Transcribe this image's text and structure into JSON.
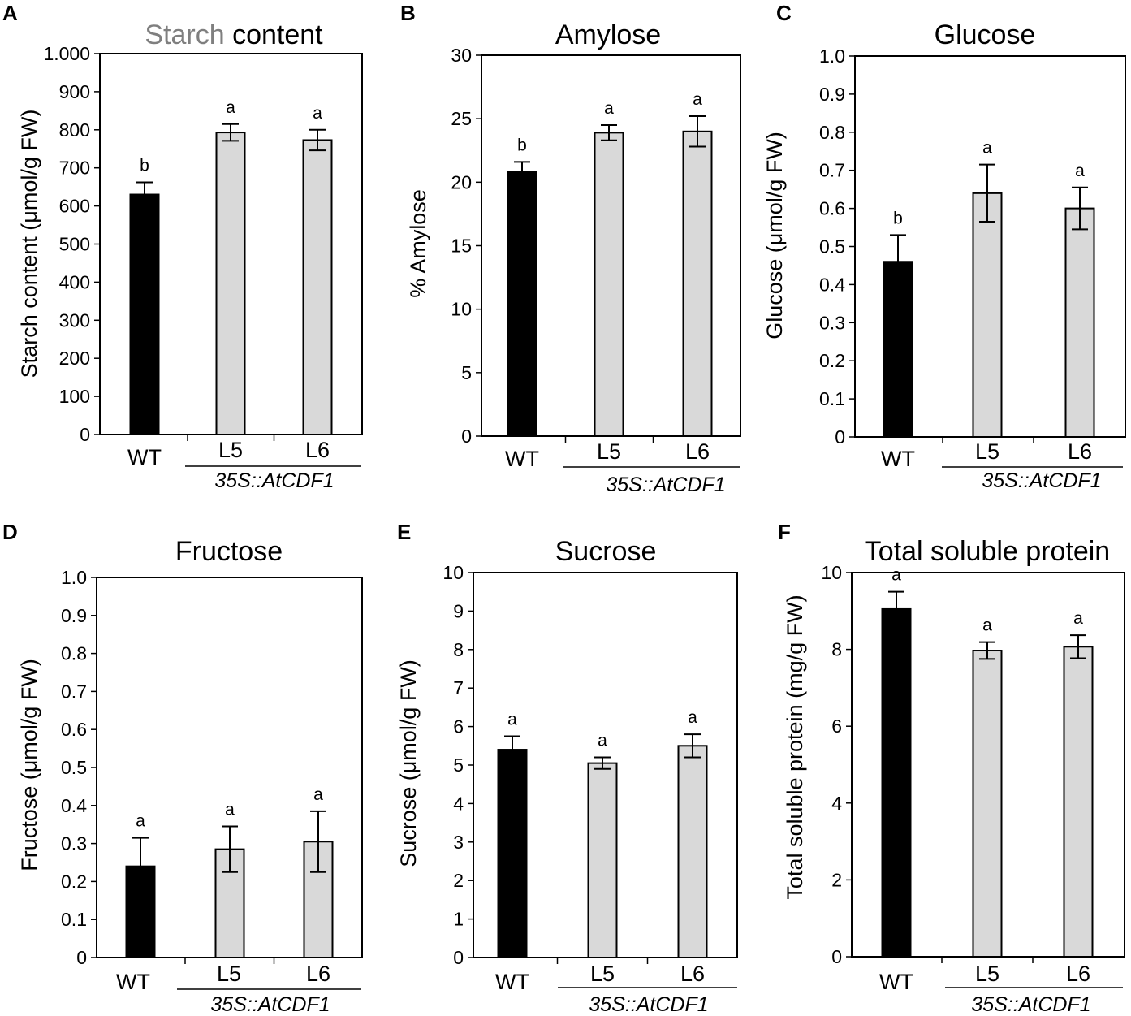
{
  "figure": {
    "group_label": "35S::AtCDF1"
  },
  "colors": {
    "wt": "#000000",
    "transgenic": "#d9d9d9",
    "stroke": "#000000",
    "title_muted": "#7f7f7f"
  },
  "chart_data": [
    {
      "panel": "A",
      "type": "bar",
      "title": "Starch content",
      "title_parts": [
        "Starch",
        " content"
      ],
      "ylabel": "Starch content (μmol/g FW)",
      "categories": [
        "WT",
        "L5",
        "L6"
      ],
      "values": [
        630,
        793,
        773
      ],
      "errors": [
        32,
        22,
        27
      ],
      "significance": [
        "b",
        "a",
        "a"
      ],
      "ylim": [
        0,
        1000
      ],
      "yticks": [
        0,
        100,
        200,
        300,
        400,
        500,
        600,
        700,
        800,
        900,
        1000
      ],
      "ytick_labels": [
        "0",
        "100",
        "200",
        "300",
        "400",
        "500",
        "600",
        "700",
        "800",
        "900",
        "1.000"
      ]
    },
    {
      "panel": "B",
      "type": "bar",
      "title": "Amylose",
      "ylabel": "% Amylose",
      "categories": [
        "WT",
        "L5",
        "L6"
      ],
      "values": [
        20.8,
        23.9,
        24.0
      ],
      "errors": [
        0.8,
        0.6,
        1.2
      ],
      "significance": [
        "b",
        "a",
        "a"
      ],
      "ylim": [
        0,
        30
      ],
      "yticks": [
        0,
        5,
        10,
        15,
        20,
        25,
        30
      ],
      "ytick_labels": [
        "0",
        "5",
        "10",
        "15",
        "20",
        "25",
        "30"
      ]
    },
    {
      "panel": "C",
      "type": "bar",
      "title": "Glucose",
      "ylabel": "Glucose (μmol/g FW)",
      "categories": [
        "WT",
        "L5",
        "L6"
      ],
      "values": [
        0.46,
        0.64,
        0.6
      ],
      "errors": [
        0.07,
        0.075,
        0.055
      ],
      "significance": [
        "b",
        "a",
        "a"
      ],
      "ylim": [
        0,
        1.0
      ],
      "yticks": [
        0,
        0.1,
        0.2,
        0.3,
        0.4,
        0.5,
        0.6,
        0.7,
        0.8,
        0.9,
        1.0
      ],
      "ytick_labels": [
        "0",
        "0.1",
        "0.2",
        "0.3",
        "0.4",
        "0.5",
        "0.6",
        "0.7",
        "0.8",
        "0.9",
        "1.0"
      ]
    },
    {
      "panel": "D",
      "type": "bar",
      "title": "Fructose",
      "ylabel": "Fructose (μmol/g FW)",
      "categories": [
        "WT",
        "L5",
        "L6"
      ],
      "values": [
        0.24,
        0.285,
        0.305
      ],
      "errors": [
        0.075,
        0.06,
        0.08
      ],
      "significance": [
        "a",
        "a",
        "a"
      ],
      "ylim": [
        0,
        1.0
      ],
      "yticks": [
        0,
        0.1,
        0.2,
        0.3,
        0.4,
        0.5,
        0.6,
        0.7,
        0.8,
        0.9,
        1.0
      ],
      "ytick_labels": [
        "0",
        "0.1",
        "0.2",
        "0.3",
        "0.4",
        "0.5",
        "0.6",
        "0.7",
        "0.8",
        "0.9",
        "1.0"
      ]
    },
    {
      "panel": "E",
      "type": "bar",
      "title": "Sucrose",
      "ylabel": "Sucrose (μmol/g FW)",
      "categories": [
        "WT",
        "L5",
        "L6"
      ],
      "values": [
        5.4,
        5.05,
        5.5
      ],
      "errors": [
        0.35,
        0.15,
        0.3
      ],
      "significance": [
        "a",
        "a",
        "a"
      ],
      "ylim": [
        0,
        10
      ],
      "yticks": [
        0,
        1,
        2,
        3,
        4,
        5,
        6,
        7,
        8,
        9,
        10
      ],
      "ytick_labels": [
        "0",
        "1",
        "2",
        "3",
        "4",
        "5",
        "6",
        "7",
        "8",
        "9",
        "10"
      ]
    },
    {
      "panel": "F",
      "type": "bar",
      "title": "Total soluble protein",
      "ylabel": "Total soluble protein (mg/g FW)",
      "categories": [
        "WT",
        "L5",
        "L6"
      ],
      "values": [
        9.05,
        7.97,
        8.07
      ],
      "errors": [
        0.45,
        0.22,
        0.3
      ],
      "significance": [
        "a",
        "a",
        "a"
      ],
      "ylim": [
        0,
        10
      ],
      "yticks": [
        0,
        2,
        4,
        6,
        8,
        10
      ],
      "ytick_labels": [
        "0",
        "2",
        "4",
        "6",
        "8",
        "10"
      ]
    }
  ]
}
